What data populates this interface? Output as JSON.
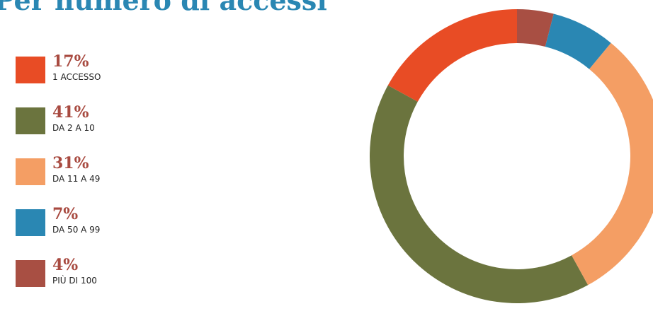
{
  "title": "Per numero di accessi",
  "chart_data": {
    "type": "pie",
    "categories": [
      "1 ACCESSO",
      "DA 2 A 10",
      "DA 11 A 49",
      "DA 50 A 99",
      "PIÙ DI 100"
    ],
    "values": [
      17,
      41,
      31,
      7,
      4
    ],
    "labels": [
      "17%",
      "41%",
      "31%",
      "7%",
      "4%"
    ],
    "colors": [
      "#e84c25",
      "#6b743e",
      "#f49e64",
      "#2a87b3",
      "#a84f43"
    ],
    "unit": "%",
    "style": "donut"
  }
}
